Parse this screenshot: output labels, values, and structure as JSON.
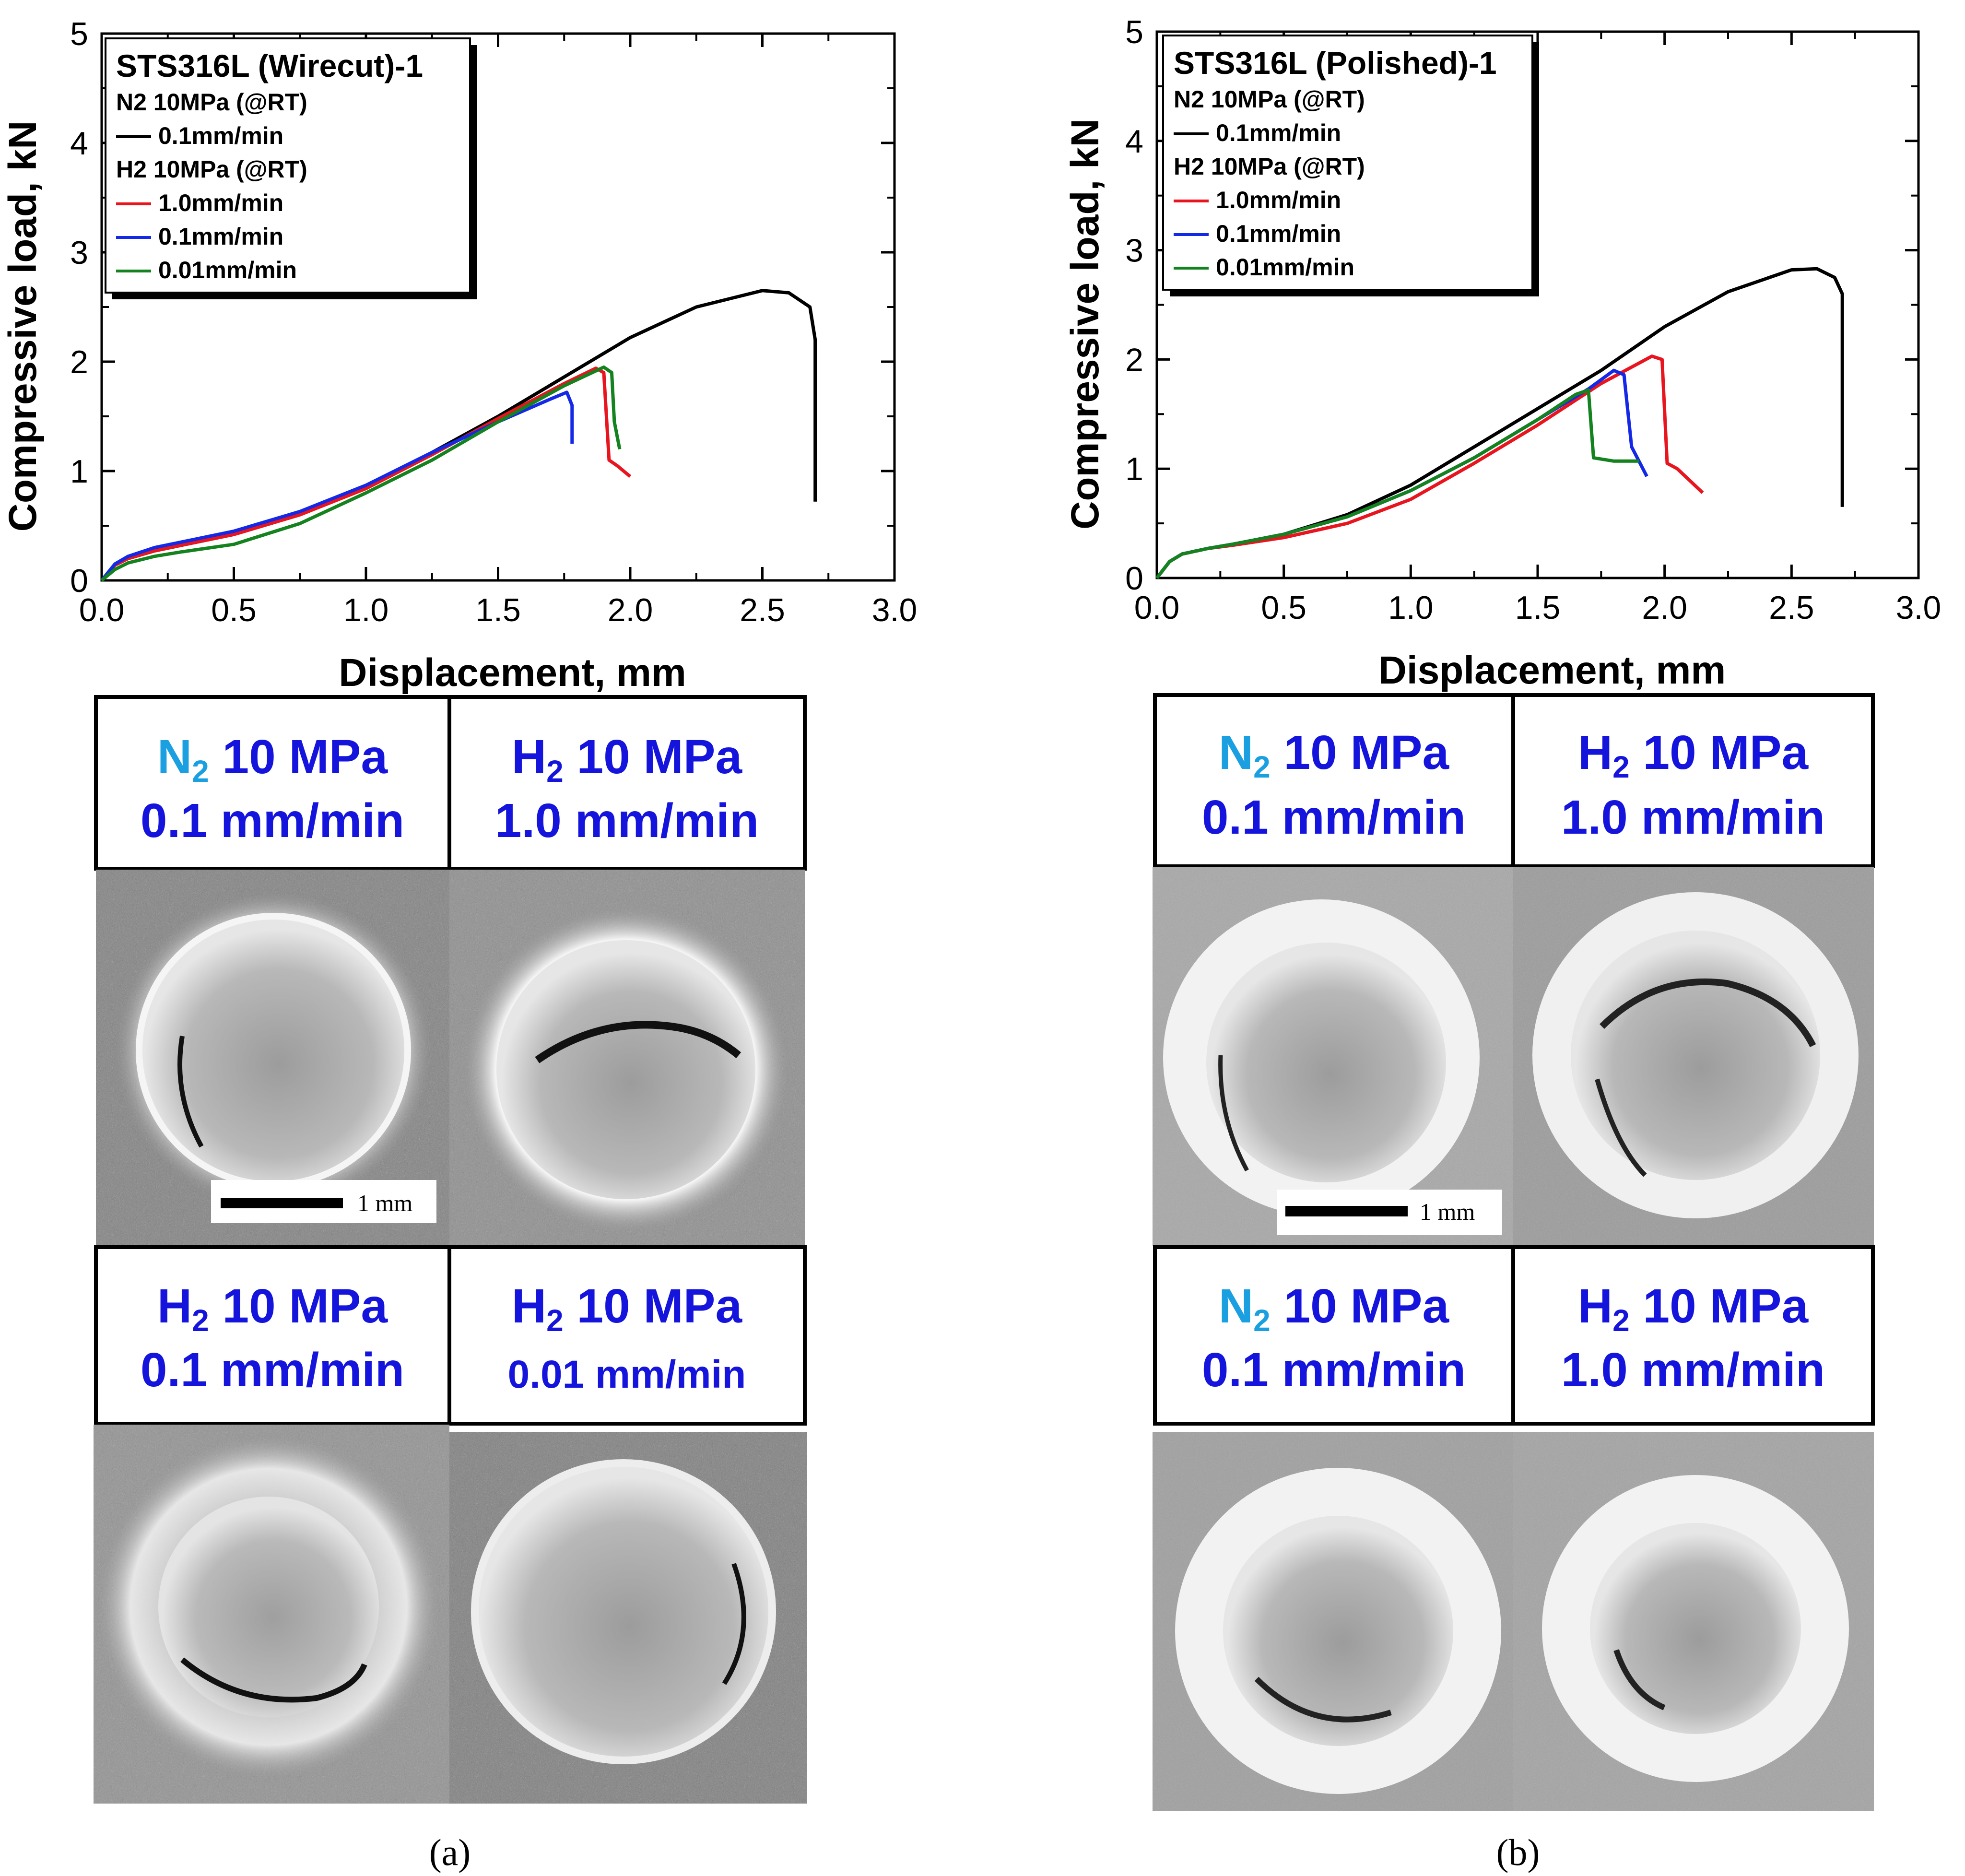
{
  "chart_data": [
    {
      "type": "line",
      "panel": "a",
      "title": "STS316L (Wirecut)-1",
      "xlabel": "Displacement, mm",
      "ylabel": "Compressive load, kN",
      "xlim": [
        0,
        3.0
      ],
      "ylim": [
        0,
        5
      ],
      "xticks": [
        "0.0",
        "0.5",
        "1.0",
        "1.5",
        "2.0",
        "2.5",
        "3.0"
      ],
      "yticks": [
        "0",
        "1",
        "2",
        "3",
        "4",
        "5"
      ],
      "legend": {
        "location": "top-left",
        "groups": [
          {
            "header": "N2 10MPa (@RT)",
            "entries": [
              {
                "label": "0.1mm/min",
                "color": "#000000"
              }
            ]
          },
          {
            "header": "H2 10MPa (@RT)",
            "entries": [
              {
                "label": "1.0mm/min",
                "color": "#e8141e"
              },
              {
                "label": "0.1mm/min",
                "color": "#1428e8"
              },
              {
                "label": "0.01mm/min",
                "color": "#14821e"
              }
            ]
          }
        ]
      },
      "series": [
        {
          "name": "N2 10MPa 0.1mm/min",
          "color": "#000000",
          "x": [
            0,
            0.05,
            0.1,
            0.2,
            0.3,
            0.5,
            0.75,
            1.0,
            1.25,
            1.5,
            1.75,
            2.0,
            2.25,
            2.5,
            2.6,
            2.68,
            2.7,
            2.7
          ],
          "y": [
            0,
            0.14,
            0.2,
            0.27,
            0.32,
            0.42,
            0.6,
            0.85,
            1.17,
            1.5,
            1.86,
            2.22,
            2.5,
            2.65,
            2.63,
            2.5,
            2.2,
            0.72
          ]
        },
        {
          "name": "H2 10MPa 1.0mm/min",
          "color": "#e8141e",
          "x": [
            0,
            0.05,
            0.1,
            0.2,
            0.3,
            0.5,
            0.75,
            1.0,
            1.25,
            1.5,
            1.75,
            1.87,
            1.9,
            1.92,
            1.95,
            2.0
          ],
          "y": [
            0,
            0.14,
            0.2,
            0.27,
            0.32,
            0.42,
            0.6,
            0.84,
            1.15,
            1.48,
            1.8,
            1.94,
            1.9,
            1.1,
            1.05,
            0.95
          ]
        },
        {
          "name": "H2 10MPa 0.1mm/min",
          "color": "#1428e8",
          "x": [
            0,
            0.05,
            0.1,
            0.2,
            0.3,
            0.5,
            0.75,
            1.0,
            1.25,
            1.5,
            1.7,
            1.76,
            1.78,
            1.78
          ],
          "y": [
            0,
            0.15,
            0.22,
            0.3,
            0.35,
            0.45,
            0.63,
            0.87,
            1.17,
            1.45,
            1.66,
            1.72,
            1.6,
            1.25
          ]
        },
        {
          "name": "H2 10MPa 0.01mm/min",
          "color": "#14821e",
          "x": [
            0,
            0.05,
            0.1,
            0.2,
            0.3,
            0.5,
            0.75,
            1.0,
            1.25,
            1.5,
            1.75,
            1.9,
            1.93,
            1.94,
            1.96
          ],
          "y": [
            0,
            0.1,
            0.16,
            0.22,
            0.26,
            0.33,
            0.52,
            0.8,
            1.1,
            1.45,
            1.78,
            1.95,
            1.9,
            1.45,
            1.2
          ]
        }
      ]
    },
    {
      "type": "line",
      "panel": "b",
      "title": "STS316L (Polished)-1",
      "xlabel": "Displacement, mm",
      "ylabel": "Compressive load, kN",
      "xlim": [
        0,
        3.0
      ],
      "ylim": [
        0,
        5
      ],
      "xticks": [
        "0.0",
        "0.5",
        "1.0",
        "1.5",
        "2.0",
        "2.5",
        "3.0"
      ],
      "yticks": [
        "0",
        "1",
        "2",
        "3",
        "4",
        "5"
      ],
      "legend": {
        "location": "top-left",
        "groups": [
          {
            "header": "N2 10MPa (@RT)",
            "entries": [
              {
                "label": "0.1mm/min",
                "color": "#000000"
              }
            ]
          },
          {
            "header": "H2 10MPa (@RT)",
            "entries": [
              {
                "label": "1.0mm/min",
                "color": "#e8141e"
              },
              {
                "label": "0.1mm/min",
                "color": "#1428e8"
              },
              {
                "label": "0.01mm/min",
                "color": "#14821e"
              }
            ]
          }
        ]
      },
      "series": [
        {
          "name": "N2 10MPa 0.1mm/min",
          "color": "#000000",
          "x": [
            0,
            0.05,
            0.1,
            0.2,
            0.3,
            0.5,
            0.75,
            1.0,
            1.25,
            1.5,
            1.75,
            2.0,
            2.25,
            2.5,
            2.6,
            2.67,
            2.7,
            2.7
          ],
          "y": [
            0,
            0.15,
            0.22,
            0.27,
            0.31,
            0.4,
            0.58,
            0.85,
            1.2,
            1.55,
            1.9,
            2.3,
            2.62,
            2.82,
            2.83,
            2.75,
            2.6,
            0.65
          ]
        },
        {
          "name": "H2 10MPa 1.0mm/min",
          "color": "#e8141e",
          "x": [
            0,
            0.05,
            0.1,
            0.2,
            0.3,
            0.5,
            0.75,
            1.0,
            1.25,
            1.5,
            1.75,
            1.95,
            1.99,
            2.01,
            2.05,
            2.15
          ],
          "y": [
            0,
            0.15,
            0.22,
            0.27,
            0.3,
            0.37,
            0.5,
            0.72,
            1.05,
            1.4,
            1.78,
            2.03,
            2.0,
            1.05,
            1.0,
            0.78
          ]
        },
        {
          "name": "H2 10MPa 0.1mm/min",
          "color": "#1428e8",
          "x": [
            0,
            0.05,
            0.1,
            0.2,
            0.3,
            0.5,
            0.75,
            1.0,
            1.25,
            1.5,
            1.7,
            1.8,
            1.84,
            1.87,
            1.93
          ],
          "y": [
            0,
            0.15,
            0.22,
            0.27,
            0.31,
            0.4,
            0.56,
            0.8,
            1.1,
            1.45,
            1.73,
            1.9,
            1.86,
            1.2,
            0.93
          ]
        },
        {
          "name": "H2 10MPa 0.01mm/min",
          "color": "#14821e",
          "x": [
            0,
            0.05,
            0.1,
            0.2,
            0.3,
            0.5,
            0.75,
            1.0,
            1.25,
            1.5,
            1.65,
            1.7,
            1.72,
            1.8,
            1.9
          ],
          "y": [
            0,
            0.15,
            0.22,
            0.27,
            0.31,
            0.4,
            0.56,
            0.8,
            1.1,
            1.45,
            1.68,
            1.72,
            1.1,
            1.07,
            1.07
          ]
        }
      ]
    }
  ],
  "panels": {
    "a": {
      "caption": "(a)",
      "scale_bar": "1 mm",
      "cells": [
        {
          "gas": "N",
          "sub": "2",
          "pressure": " 10 MPa",
          "rate": "0.1 mm/min"
        },
        {
          "gas": "H",
          "sub": "2",
          "pressure": " 10 MPa",
          "rate": "1.0 mm/min"
        },
        {
          "gas": "H",
          "sub": "2",
          "pressure": " 10 MPa",
          "rate": "0.1 mm/min"
        },
        {
          "gas": "H",
          "sub": "2",
          "pressure": " 10 MPa",
          "rate": "0.01  mm/min"
        }
      ]
    },
    "b": {
      "caption": "(b)",
      "scale_bar": "1 mm",
      "cells": [
        {
          "gas": "N",
          "sub": "2",
          "pressure": " 10 MPa",
          "rate": "0.1 mm/min"
        },
        {
          "gas": "H",
          "sub": "2",
          "pressure": " 10 MPa",
          "rate": "1.0 mm/min"
        },
        {
          "gas": "N",
          "sub": "2",
          "pressure": " 10 MPa",
          "rate": "0.1 mm/min"
        },
        {
          "gas": "H",
          "sub": "2",
          "pressure": " 10 MPa",
          "rate": "1.0 mm/min"
        }
      ]
    }
  },
  "colors": {
    "label_blue": "#1414dc",
    "gas_cyan_nitrogen": "#1aa0e0",
    "caption_bold": "a"
  }
}
